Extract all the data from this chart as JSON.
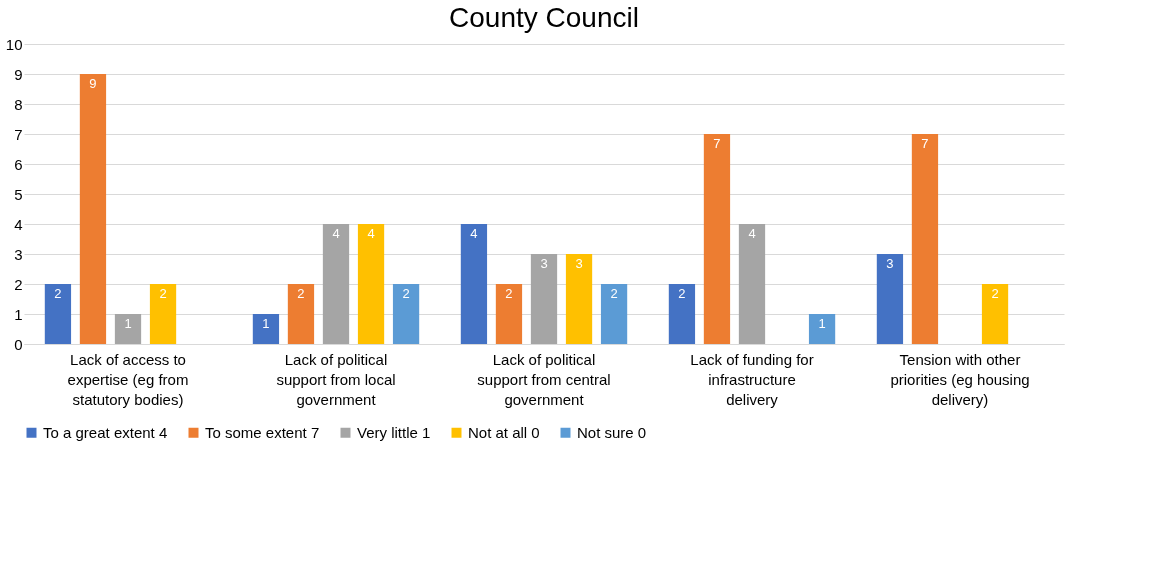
{
  "chart_data": {
    "type": "bar",
    "title": "County Council",
    "categories": [
      "Lack of access to expertise (eg from statutory bodies)",
      "Lack of political support from local government",
      "Lack of political support from central government",
      "Lack of funding for infrastructure delivery",
      "Tension with other priorities (eg housing delivery)"
    ],
    "series": [
      {
        "name": "To a great extent 4",
        "color": "#4472c4",
        "values": [
          2,
          1,
          4,
          2,
          3
        ]
      },
      {
        "name": "To some extent 7",
        "color": "#ed7d31",
        "values": [
          9,
          2,
          2,
          7,
          7
        ]
      },
      {
        "name": "Very little 1",
        "color": "#a5a5a5",
        "values": [
          1,
          4,
          3,
          4,
          null
        ]
      },
      {
        "name": "Not at all 0",
        "color": "#ffc000",
        "values": [
          2,
          4,
          3,
          null,
          2
        ]
      },
      {
        "name": "Not sure 0",
        "color": "#5b9bd5",
        "values": [
          null,
          2,
          2,
          1,
          null
        ]
      }
    ],
    "ylim": [
      0,
      10
    ],
    "yticks": [
      0,
      1,
      2,
      3,
      4,
      5,
      6,
      7,
      8,
      9,
      10
    ],
    "grid": "y",
    "legend": "bottom",
    "data_labels": true
  }
}
